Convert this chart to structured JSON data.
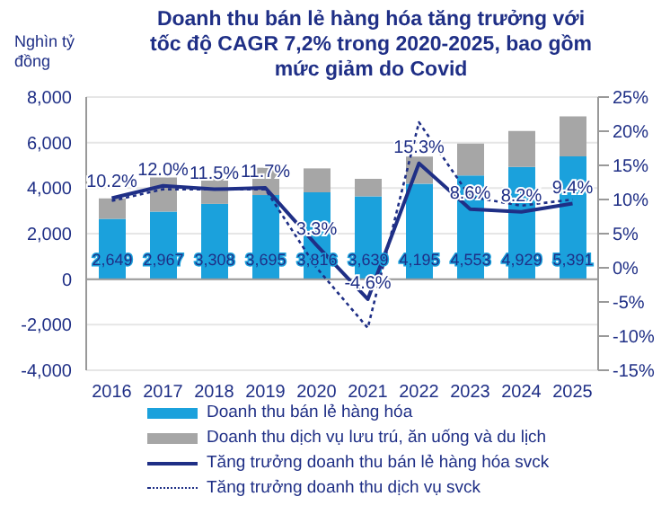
{
  "chart_data": {
    "type": "bar",
    "title": "Doanh thu bán lẻ hàng hóa tăng trưởng với tốc độ CAGR  7,2% trong 2020-2025, bao gồm mức giảm do Covid",
    "ylabel": "Nghìn tỷ đồng",
    "categories": [
      "2016",
      "2017",
      "2018",
      "2019",
      "2020",
      "2021",
      "2022",
      "2023",
      "2024",
      "2025"
    ],
    "stacked": true,
    "series": [
      {
        "name": "Doanh thu bán lẻ hàng hóa",
        "color": "#1ba1dc",
        "values": [
          2649,
          2967,
          3308,
          3695,
          3816,
          3639,
          4195,
          4553,
          4929,
          5391
        ],
        "value_labels": [
          "2,649",
          "2,967",
          "3,308",
          "3,695",
          "3,816",
          "3,639",
          "4,195",
          "4,553",
          "4,929",
          "5,391"
        ]
      },
      {
        "name": "Doanh thu dịch vụ lưu trú, ăn uống và du lịch",
        "color": "#a6a6a6",
        "values": [
          900,
          1500,
          1100,
          1200,
          1050,
          770,
          1190,
          1400,
          1580,
          1760
        ]
      },
      {
        "name": "Tăng trưởng doanh thu bán lẻ hàng hóa svck",
        "type": "line",
        "axis": "y2",
        "color": "#1f2f86",
        "line_style": "solid",
        "values": [
          10.2,
          12.0,
          11.5,
          11.7,
          3.3,
          -4.6,
          15.3,
          8.6,
          8.2,
          9.4
        ],
        "value_labels": [
          "10.2%",
          "12.0%",
          "11.5%",
          "11.7%",
          "3.3%",
          "-4.6%",
          "15.3%",
          "8.6%",
          "8.2%",
          "9.4%"
        ]
      },
      {
        "name": "Tăng trưởng doanh thu dịch vụ svck",
        "type": "line",
        "axis": "y2",
        "color": "#1f2f86",
        "line_style": "dotted",
        "values": [
          9.8,
          11.5,
          11.5,
          11.5,
          0,
          -8.8,
          21.3,
          10.4,
          9.1,
          10.0
        ]
      }
    ],
    "ylim": [
      -4000,
      8000
    ],
    "yticks": [
      {
        "value": -4000,
        "label": "-4,000"
      },
      {
        "value": -2000,
        "label": "-2,000"
      },
      0,
      {
        "value": 2000,
        "label": "2,000"
      },
      {
        "value": 4000,
        "label": "4,000"
      },
      {
        "value": 6000,
        "label": "6,000"
      },
      {
        "value": 8000,
        "label": "8,000"
      }
    ],
    "y2lim": [
      -15,
      25
    ],
    "y2ticks": [
      {
        "value": -15,
        "label": "-15%"
      },
      {
        "value": -10,
        "label": "-10%"
      },
      {
        "value": -5,
        "label": "-5%"
      },
      {
        "value": 0,
        "label": "0%"
      },
      {
        "value": 5,
        "label": "5%"
      },
      {
        "value": 10,
        "label": "10%"
      },
      {
        "value": 15,
        "label": "15%"
      },
      {
        "value": 20,
        "label": "20%"
      },
      {
        "value": 25,
        "label": "25%"
      }
    ],
    "grid": "y",
    "marker": "none",
    "legend": "bottom"
  }
}
